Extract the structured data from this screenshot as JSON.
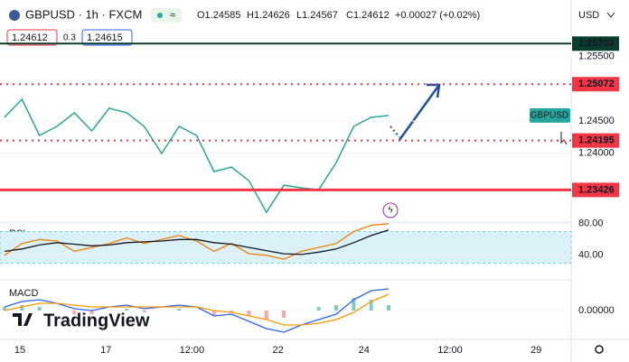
{
  "header": {
    "symbol": "GBPUSD · 1h · FXCM",
    "ohlc": [
      "O1.24585",
      "H1.24626",
      "L1.24567",
      "C1.24612",
      "+0.00027 (+0.02%)"
    ],
    "sell": "1.24612",
    "spread": "0.3",
    "buy": "1.24615",
    "currency": "USD",
    "brand": "TradingView"
  },
  "chart_data": {
    "type": "line",
    "xticks": [
      "15",
      "17",
      "12:00",
      "22",
      "24",
      "12:00",
      "29"
    ],
    "ylim": [
      1.2294,
      1.2589
    ],
    "yticks": [
      {
        "value": 1.255,
        "label": "1.25500"
      },
      {
        "value": 1.245,
        "label": "1.24500"
      },
      {
        "value": 1.24,
        "label": "1.24000"
      }
    ],
    "levels": [
      {
        "value": 1.25703,
        "label": "1.25703",
        "color": "#0b3d2e",
        "style": "solid"
      },
      {
        "value": 1.25072,
        "label": "1.25072",
        "color": "#f23645",
        "style": "dotted"
      },
      {
        "value": 1.24195,
        "label": "1.24195",
        "color": "#f23645",
        "style": "dotted"
      },
      {
        "value": 1.23426,
        "label": "1.23426",
        "color": "#f23645",
        "style": "thick"
      }
    ],
    "series": [
      {
        "name": "GBPUSD",
        "color": "#26a69a",
        "values": [
          1.24556,
          1.24838,
          1.24275,
          1.24415,
          1.24627,
          1.24345,
          1.24697,
          1.24627,
          1.24415,
          1.23993,
          1.24415,
          1.24275,
          1.23711,
          1.23782,
          1.2357,
          1.23077,
          1.235,
          1.23458,
          1.2343,
          1.23852,
          1.24415,
          1.24556,
          1.24585
        ]
      }
    ],
    "rsi": {
      "label": "RSI",
      "ylim": [
        9,
        82
      ],
      "yticks": [
        {
          "value": 80,
          "label": "80.00"
        },
        {
          "value": 40,
          "label": "40.00"
        }
      ],
      "band": [
        30,
        70
      ],
      "series": [
        {
          "color": "#f57c00",
          "values": [
            40,
            55,
            60,
            58,
            45,
            50,
            55,
            62,
            55,
            60,
            65,
            58,
            45,
            55,
            42,
            40,
            35,
            45,
            50,
            55,
            70,
            78,
            80
          ]
        },
        {
          "color": "#131722",
          "values": [
            45,
            48,
            53,
            56,
            54,
            52,
            53,
            56,
            57,
            58,
            60,
            60,
            56,
            54,
            50,
            46,
            42,
            41,
            44,
            48,
            56,
            65,
            72
          ]
        }
      ]
    },
    "macd": {
      "label": "MACD",
      "ylim": [
        -0.0016,
        0.0016
      ],
      "yticks": [
        {
          "value": 0,
          "label": "0.00000"
        }
      ],
      "series": [
        {
          "color": "#2962ff",
          "values": [
            0.0002,
            0.0005,
            0.0006,
            0.0004,
            0.0001,
            0,
            0.0002,
            0.0003,
            0.0001,
            0.0002,
            0.0003,
            0.0002,
            -0.0003,
            -0.0002,
            -0.0006,
            -0.001,
            -0.0012,
            -0.0008,
            -0.0005,
            -0.0002,
            0.0006,
            0.0011,
            0.0012
          ]
        },
        {
          "color": "#ff9800",
          "values": [
            0,
            0.0002,
            0.0004,
            0.0004,
            0.0003,
            0.0002,
            0.0002,
            0.0002,
            0.0002,
            0.0002,
            0.0002,
            0.0002,
            0,
            -0.0001,
            -0.0003,
            -0.0005,
            -0.0008,
            -0.0008,
            -0.0007,
            -0.0005,
            -0.0001,
            0.0005,
            0.0009
          ]
        }
      ]
    }
  }
}
